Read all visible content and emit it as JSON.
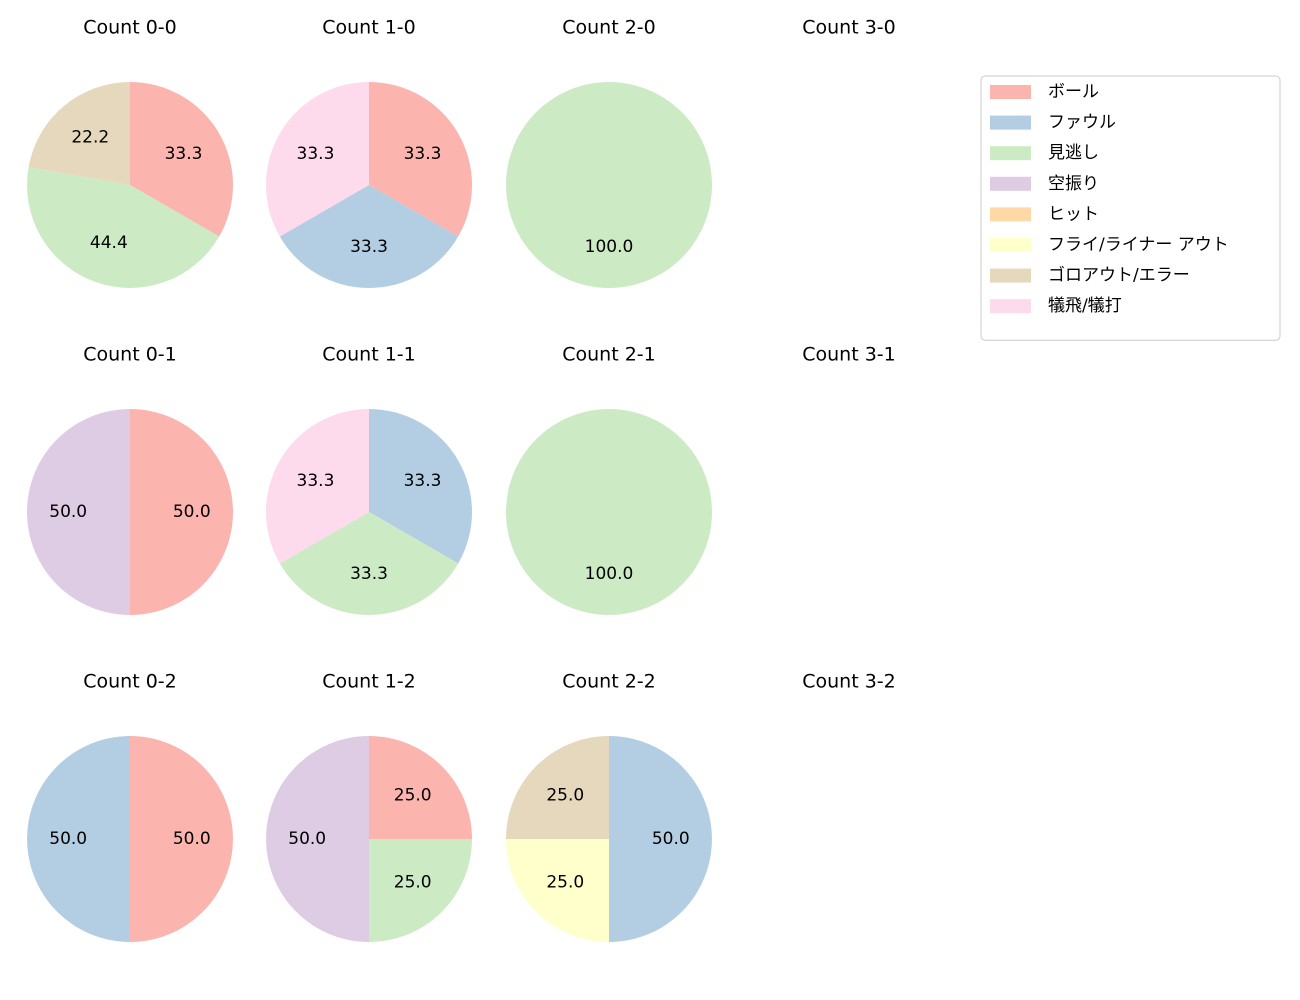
{
  "chart_data": [
    {
      "type": "pie",
      "title": "Count 0-0",
      "categories": [
        "ボール",
        "見逃し",
        "ゴロアウト/エラー"
      ],
      "values": [
        33.3,
        44.4,
        22.2
      ],
      "value_labels": [
        "33.3",
        "44.4",
        "22.2"
      ]
    },
    {
      "type": "pie",
      "title": "Count 1-0",
      "categories": [
        "ボール",
        "ファウル",
        "犠飛/犠打"
      ],
      "values": [
        33.3,
        33.3,
        33.3
      ],
      "value_labels": [
        "33.3",
        "33.3",
        "33.3"
      ]
    },
    {
      "type": "pie",
      "title": "Count 2-0",
      "categories": [
        "見逃し"
      ],
      "values": [
        100
      ],
      "value_labels": [
        "100.0"
      ]
    },
    {
      "type": "pie",
      "title": "Count 3-0",
      "categories": [],
      "values": [],
      "value_labels": []
    },
    {
      "type": "pie",
      "title": "Count 0-1",
      "categories": [
        "ボール",
        "空振り"
      ],
      "values": [
        50,
        50
      ],
      "value_labels": [
        "50.0",
        "50.0"
      ]
    },
    {
      "type": "pie",
      "title": "Count 1-1",
      "categories": [
        "ファウル",
        "見逃し",
        "犠飛/犠打"
      ],
      "values": [
        33.3,
        33.3,
        33.3
      ],
      "value_labels": [
        "33.3",
        "33.3",
        "33.3"
      ]
    },
    {
      "type": "pie",
      "title": "Count 2-1",
      "categories": [
        "見逃し"
      ],
      "values": [
        100
      ],
      "value_labels": [
        "100.0"
      ]
    },
    {
      "type": "pie",
      "title": "Count 3-1",
      "categories": [],
      "values": [],
      "value_labels": []
    },
    {
      "type": "pie",
      "title": "Count 0-2",
      "categories": [
        "ボール",
        "ファウル"
      ],
      "values": [
        50,
        50
      ],
      "value_labels": [
        "50.0",
        "50.0"
      ]
    },
    {
      "type": "pie",
      "title": "Count 1-2",
      "categories": [
        "ボール",
        "見逃し",
        "空振り"
      ],
      "values": [
        25,
        25,
        50
      ],
      "value_labels": [
        "25.0",
        "25.0",
        "50.0"
      ]
    },
    {
      "type": "pie",
      "title": "Count 2-2",
      "categories": [
        "ファウル",
        "フライ/ライナー アウト",
        "ゴロアウト/エラー"
      ],
      "values": [
        50,
        25,
        25
      ],
      "value_labels": [
        "50.0",
        "25.0",
        "25.0"
      ]
    },
    {
      "type": "pie",
      "title": "Count 3-2",
      "categories": [],
      "values": [],
      "value_labels": []
    }
  ],
  "legend": {
    "location": "upper right",
    "entries": [
      {
        "name": "ボール",
        "color": "#fbb4ae"
      },
      {
        "name": "ファウル",
        "color": "#b3cde3"
      },
      {
        "name": "見逃し",
        "color": "#ccebc5"
      },
      {
        "name": "空振り",
        "color": "#decbe4"
      },
      {
        "name": "ヒット",
        "color": "#fed9a6"
      },
      {
        "name": "フライ/ライナー アウト",
        "color": "#ffffcc"
      },
      {
        "name": "ゴロアウト/エラー",
        "color": "#e5d8bd"
      },
      {
        "name": "犠飛/犠打",
        "color": "#fddaec"
      }
    ]
  }
}
